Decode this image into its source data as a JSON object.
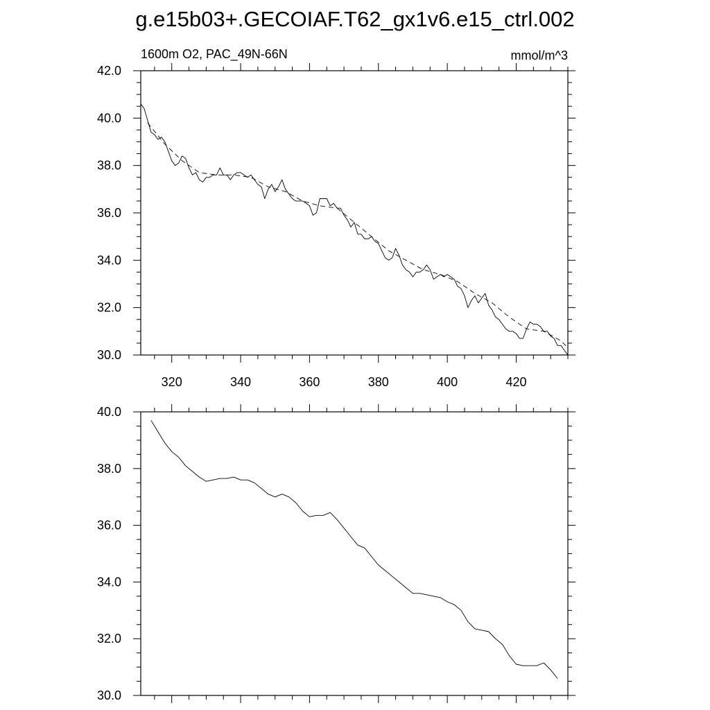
{
  "figure": {
    "title": "g.e15b03+.GECOIAF.T62_gx1v6.e15_ctrl.002"
  },
  "chart_data": [
    {
      "type": "line",
      "left_label": "1600m O2, PAC_49N-66N",
      "right_label": "mmol/m^3",
      "xlim": [
        311,
        435
      ],
      "ylim": [
        30,
        42
      ],
      "x_ticks": [
        320,
        340,
        360,
        380,
        400,
        420
      ],
      "x_tick_labels": [
        "320",
        "340",
        "360",
        "380",
        "400",
        "420"
      ],
      "y_ticks": [
        30,
        32,
        34,
        36,
        38,
        40,
        42
      ],
      "y_tick_labels": [
        "30.0",
        "32.0",
        "34.0",
        "36.0",
        "38.0",
        "40.0",
        "42.0"
      ],
      "series": [
        {
          "style": "solid",
          "x": [
            311,
            312,
            313,
            314,
            315,
            316,
            317,
            318,
            319,
            320,
            321,
            322,
            323,
            324,
            325,
            326,
            327,
            328,
            329,
            330,
            331,
            332,
            333,
            334,
            335,
            336,
            337,
            338,
            339,
            340,
            341,
            342,
            343,
            344,
            345,
            346,
            347,
            348,
            349,
            350,
            351,
            352,
            353,
            354,
            355,
            356,
            357,
            358,
            359,
            360,
            361,
            362,
            363,
            364,
            365,
            366,
            367,
            368,
            369,
            370,
            371,
            372,
            373,
            374,
            375,
            376,
            377,
            378,
            379,
            380,
            381,
            382,
            383,
            384,
            385,
            386,
            387,
            388,
            389,
            390,
            391,
            392,
            393,
            394,
            395,
            396,
            397,
            398,
            399,
            400,
            401,
            402,
            403,
            404,
            405,
            406,
            407,
            408,
            409,
            410,
            411,
            412,
            413,
            414,
            415,
            416,
            417,
            418,
            419,
            420,
            421,
            422,
            423,
            424,
            425,
            426,
            427,
            428,
            429,
            430,
            431,
            432,
            433,
            434,
            435
          ],
          "values": [
            40.6,
            40.4,
            39.9,
            39.4,
            39.3,
            39.1,
            39.2,
            39.0,
            38.6,
            38.2,
            38.0,
            38.1,
            38.4,
            38.3,
            37.9,
            37.6,
            37.7,
            37.4,
            37.3,
            37.5,
            37.5,
            37.6,
            37.6,
            37.9,
            37.6,
            37.6,
            37.4,
            37.6,
            37.7,
            37.7,
            37.6,
            37.5,
            37.6,
            37.4,
            37.2,
            37.1,
            36.6,
            37.0,
            37.2,
            36.9,
            37.1,
            37.4,
            37.0,
            36.8,
            36.6,
            36.5,
            36.5,
            36.5,
            36.4,
            36.3,
            35.9,
            36.0,
            36.6,
            36.6,
            36.6,
            36.3,
            36.4,
            36.2,
            36.2,
            35.9,
            35.7,
            35.4,
            35.6,
            35.1,
            35.1,
            34.9,
            34.9,
            35.0,
            34.8,
            34.7,
            34.4,
            34.1,
            34.0,
            34.1,
            34.5,
            34.2,
            33.8,
            33.6,
            33.5,
            33.3,
            33.5,
            33.5,
            33.6,
            33.8,
            33.6,
            33.2,
            33.3,
            33.4,
            33.3,
            33.4,
            33.3,
            33.2,
            32.9,
            32.8,
            32.5,
            32.0,
            32.3,
            32.5,
            32.2,
            32.4,
            32.6,
            32.1,
            31.9,
            31.6,
            31.5,
            31.3,
            31.1,
            31.0,
            31.0,
            30.9,
            30.7,
            30.7,
            31.1,
            31.4,
            31.3,
            31.3,
            31.2,
            31.0,
            31.0,
            30.8,
            30.7,
            30.4,
            30.4,
            30.2,
            30.0
          ]
        },
        {
          "style": "dashed",
          "x": [
            313,
            318,
            323,
            328,
            333,
            338,
            343,
            348,
            353,
            358,
            363,
            368,
            373,
            378,
            383,
            388,
            393,
            398,
            403,
            408,
            413,
            418,
            423,
            428,
            433,
            435
          ],
          "values": [
            39.8,
            38.9,
            38.2,
            37.7,
            37.6,
            37.6,
            37.5,
            37.1,
            36.9,
            36.5,
            36.3,
            36.2,
            35.6,
            35.0,
            34.4,
            34.0,
            33.6,
            33.4,
            33.1,
            32.6,
            32.2,
            31.6,
            31.1,
            31.0,
            30.6,
            30.3
          ]
        }
      ]
    },
    {
      "type": "line",
      "xlim": [
        311,
        435
      ],
      "ylim": [
        30,
        40
      ],
      "x_ticks": [
        320,
        340,
        360,
        380,
        400,
        420
      ],
      "y_ticks": [
        30,
        32,
        34,
        36,
        38,
        40
      ],
      "y_tick_labels": [
        "30.0",
        "32.0",
        "34.0",
        "36.0",
        "38.0",
        "40.0"
      ],
      "series": [
        {
          "style": "solid",
          "x": [
            314,
            316,
            318,
            320,
            322,
            324,
            326,
            328,
            330,
            332,
            334,
            336,
            338,
            340,
            342,
            344,
            346,
            348,
            350,
            352,
            354,
            356,
            358,
            360,
            362,
            364,
            366,
            368,
            370,
            372,
            374,
            376,
            378,
            380,
            382,
            384,
            386,
            388,
            390,
            392,
            394,
            396,
            398,
            400,
            402,
            404,
            406,
            408,
            410,
            412,
            414,
            416,
            418,
            420,
            422,
            424,
            426,
            428,
            430,
            432
          ],
          "values": [
            39.7,
            39.3,
            38.9,
            38.6,
            38.4,
            38.1,
            37.9,
            37.7,
            37.55,
            37.6,
            37.65,
            37.65,
            37.7,
            37.6,
            37.6,
            37.5,
            37.3,
            37.1,
            37.0,
            37.1,
            37.0,
            36.8,
            36.5,
            36.3,
            36.35,
            36.35,
            36.45,
            36.2,
            35.9,
            35.6,
            35.3,
            35.2,
            34.9,
            34.6,
            34.4,
            34.2,
            34.0,
            33.8,
            33.6,
            33.6,
            33.55,
            33.5,
            33.45,
            33.3,
            33.2,
            33.0,
            32.6,
            32.35,
            32.3,
            32.25,
            32.0,
            31.8,
            31.4,
            31.1,
            31.05,
            31.05,
            31.05,
            31.15,
            30.9,
            30.6
          ]
        }
      ]
    }
  ]
}
